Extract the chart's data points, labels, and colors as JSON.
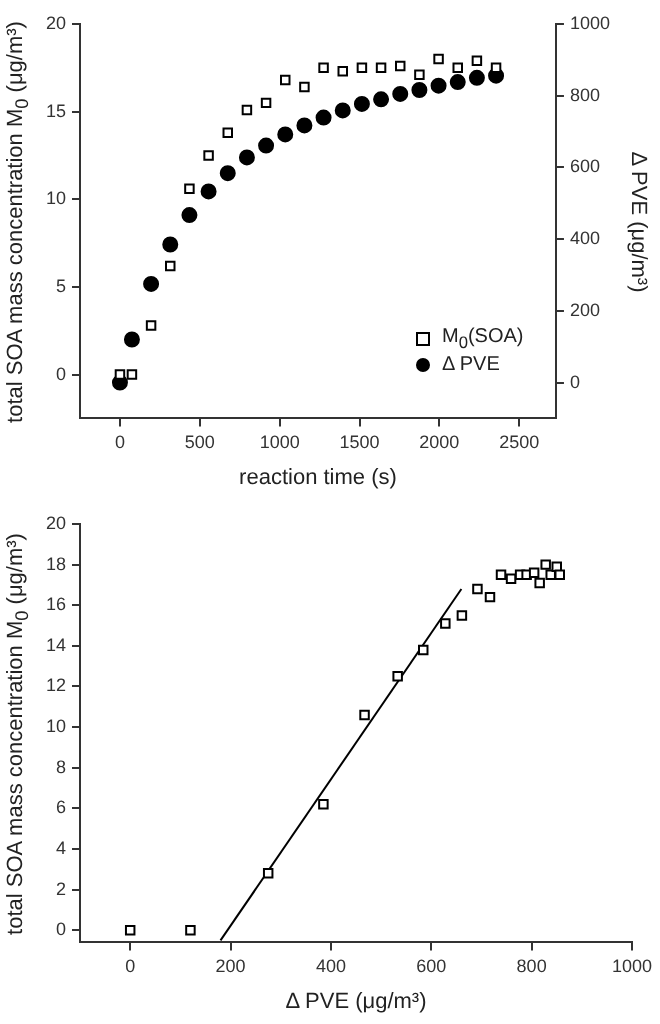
{
  "chart_data": [
    {
      "type": "scatter",
      "xlabel": "reaction time (s)",
      "ylabel": "total SOA mass concentration M$_{0}$ (μg/m³)",
      "y2label": "Δ PVE (μg/m³)",
      "x": [
        0,
        75,
        195,
        315,
        435,
        555,
        675,
        795,
        915,
        1035,
        1155,
        1275,
        1395,
        1515,
        1635,
        1755,
        1875,
        1995,
        2115,
        2235,
        2355
      ],
      "series": [
        {
          "name": "M$_{0}$(SOA)",
          "color": "#000000",
          "marker": "square",
          "values": [
            0,
            0,
            2.8,
            6.2,
            10.6,
            12.5,
            13.8,
            15.1,
            15.5,
            16.8,
            16.4,
            17.5,
            17.3,
            17.5,
            17.5,
            17.6,
            17.1,
            18.0,
            17.5,
            17.9,
            17.5
          ]
        },
        {
          "name": "Δ PVE",
          "color": "#000000",
          "marker": "circle",
          "axis": "y2",
          "values": [
            0,
            120,
            275,
            385,
            467,
            533,
            584,
            628,
            661,
            692,
            717,
            739,
            759,
            777,
            790,
            805,
            816,
            828,
            838,
            850,
            856
          ]
        }
      ],
      "xlim": [
        -250,
        2730
      ],
      "xticks": [
        0,
        500,
        1000,
        1500,
        2000,
        2500
      ],
      "ylim": [
        -2.5,
        20
      ],
      "yticks": [
        0,
        5,
        10,
        15,
        20
      ],
      "y2lim": [
        -100,
        1000
      ],
      "y2ticks": [
        0,
        200,
        400,
        600,
        800,
        1000
      ],
      "grid": false,
      "legend": "bottom right"
    },
    {
      "type": "scatter",
      "xlabel": "Δ PVE (μg/m³)",
      "ylabel": "total SOA mass concentration M$_{0}$ (μg/m³)",
      "x": [
        0,
        120,
        275,
        385,
        467,
        533,
        584,
        628,
        661,
        692,
        717,
        739,
        759,
        777,
        790,
        805,
        816,
        828,
        838,
        850,
        856
      ],
      "series": [
        {
          "color": "#000000",
          "marker": "square",
          "values": [
            0,
            0,
            2.8,
            6.2,
            10.6,
            12.5,
            13.8,
            15.1,
            15.5,
            16.8,
            16.4,
            17.5,
            17.3,
            17.5,
            17.5,
            17.6,
            17.1,
            18.0,
            17.5,
            17.9,
            17.5
          ]
        },
        {
          "type": "line",
          "color": "#000000",
          "marker": "none",
          "x": [
            180,
            660
          ],
          "values": [
            -0.5,
            16.8
          ]
        }
      ],
      "xlim": [
        -100,
        1000
      ],
      "xticks": [
        0,
        200,
        400,
        600,
        800,
        1000
      ],
      "ylim": [
        -0.6,
        20
      ],
      "yticks": [
        0,
        2,
        4,
        6,
        8,
        10,
        12,
        14,
        16,
        18,
        20
      ],
      "grid": false,
      "legend": false
    }
  ]
}
